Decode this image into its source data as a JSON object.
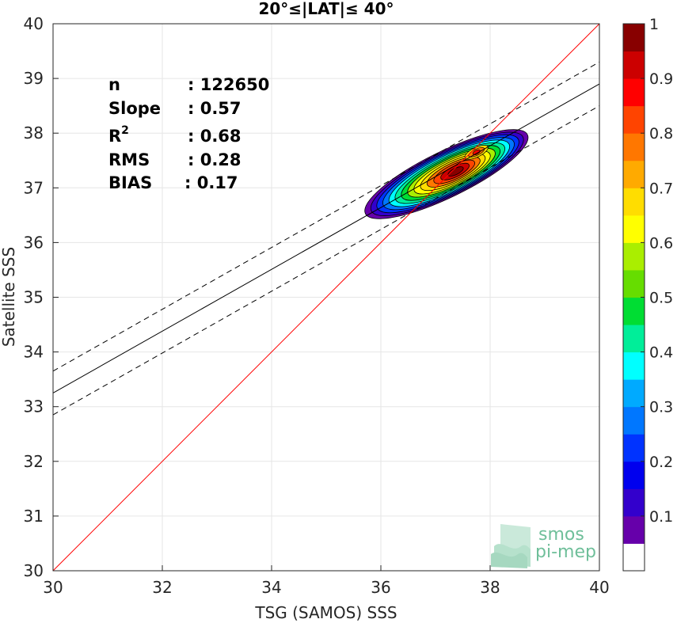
{
  "chart_data": {
    "type": "scatter",
    "title": "20°≤|LAT|≤ 40°",
    "xlabel": "TSG (SAMOS) SSS",
    "ylabel": "Satellite SSS",
    "xlim": [
      30,
      40
    ],
    "ylim": [
      30,
      40
    ],
    "xticks": [
      "30",
      "32",
      "34",
      "36",
      "38",
      "40"
    ],
    "yticks": [
      "30",
      "31",
      "32",
      "33",
      "34",
      "35",
      "36",
      "37",
      "38",
      "39",
      "40"
    ],
    "grid": true,
    "stats": [
      {
        "label": "n",
        "value": ": 122650"
      },
      {
        "label": "Slope",
        "value": ": 0.57"
      },
      {
        "label": "R",
        "sup": "2",
        "value": ": 0.68"
      },
      {
        "label": "RMS",
        "value": ": 0.28"
      },
      {
        "label": "BIAS",
        "value": ": 0.17"
      }
    ],
    "lines": {
      "identity": {
        "color": "#ff0000",
        "x": [
          30,
          40
        ],
        "y": [
          30,
          40
        ]
      },
      "fit": {
        "color": "#000000",
        "x": [
          30,
          40
        ],
        "y": [
          33.25,
          38.9
        ]
      },
      "fit_upper": {
        "color": "#000000",
        "dash": true,
        "x": [
          30,
          40
        ],
        "y": [
          33.65,
          39.3
        ]
      },
      "fit_lower": {
        "color": "#000000",
        "dash": true,
        "x": [
          30,
          40
        ],
        "y": [
          32.85,
          38.5
        ]
      }
    },
    "density": {
      "center": [
        37.2,
        37.25
      ],
      "angle_deg": 26,
      "semi_major": 1.65,
      "semi_minor": 0.42,
      "levels": 14
    },
    "colorbar": {
      "range": [
        0,
        1
      ],
      "ticks": [
        "0.1",
        "0.2",
        "0.3",
        "0.4",
        "0.5",
        "0.6",
        "0.7",
        "0.8",
        "0.9",
        "1"
      ],
      "colors": [
        "#ffffff",
        "#6600aa",
        "#3300cc",
        "#0000ee",
        "#0033ff",
        "#0077ff",
        "#00aaff",
        "#00ffff",
        "#00ee99",
        "#00dd33",
        "#66dd00",
        "#aaee00",
        "#ffff00",
        "#ffdd00",
        "#ffaa00",
        "#ff7700",
        "#ff4400",
        "#ff0000",
        "#cc0000",
        "#880000"
      ]
    }
  },
  "logo": {
    "line1": "smos",
    "line2": "pi-mep"
  }
}
